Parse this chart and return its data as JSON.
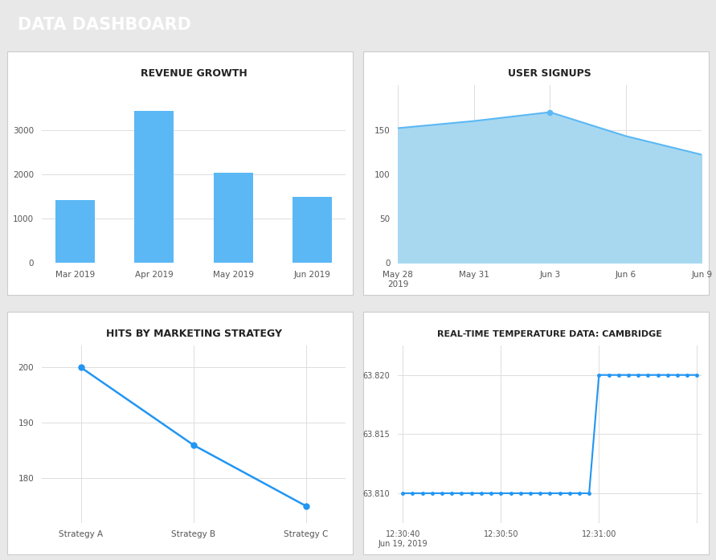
{
  "header_color": "#2196F3",
  "header_text": "DATA DASHBOARD",
  "header_text_color": "#ffffff",
  "bg_color": "#e8e8e8",
  "panel_bg": "#ffffff",
  "panel_edge": "#cccccc",
  "bar_chart": {
    "title": "REVENUE GROWTH",
    "categories": [
      "Mar 2019",
      "Apr 2019",
      "May 2019",
      "Jun 2019"
    ],
    "values": [
      1420,
      3430,
      2040,
      1490
    ],
    "bar_color": "#5BB8F5",
    "ylim": [
      0,
      4000
    ],
    "yticks": [
      0,
      1000,
      2000,
      3000
    ],
    "grid_color": "#dddddd"
  },
  "area_chart": {
    "title": "USER SIGNUPS",
    "x_labels": [
      "May 28\n2019",
      "May 31",
      "Jun 3",
      "Jun 6",
      "Jun 9"
    ],
    "x_values": [
      0,
      3,
      6,
      9,
      12
    ],
    "y_values": [
      152,
      160,
      170,
      143,
      122
    ],
    "line_color": "#5BB8F5",
    "fill_color": "#A8D8F0",
    "ylim": [
      0,
      200
    ],
    "yticks": [
      0,
      50,
      100,
      150
    ],
    "grid_color": "#dddddd"
  },
  "line_chart1": {
    "title": "HITS BY MARKETING STRATEGY",
    "x_labels": [
      "Strategy A",
      "Strategy B",
      "Strategy C"
    ],
    "x_values": [
      0,
      1,
      2
    ],
    "y_values": [
      200,
      186,
      175
    ],
    "line_color": "#2196F3",
    "ylim": [
      172,
      204
    ],
    "yticks": [
      180,
      190,
      200
    ],
    "grid_color": "#dddddd"
  },
  "line_chart2": {
    "title": "REAL-TIME TEMPERATURE DATA: CAMBRIDGE",
    "x_values": [
      0,
      1,
      2,
      3,
      4,
      5,
      6,
      7,
      8,
      9,
      10,
      11,
      12,
      13,
      14,
      15,
      16,
      17,
      18,
      19,
      20,
      21,
      22,
      23,
      24,
      25,
      26,
      27,
      28,
      29,
      30
    ],
    "y_values": [
      63.81,
      63.81,
      63.81,
      63.81,
      63.81,
      63.81,
      63.81,
      63.81,
      63.81,
      63.81,
      63.81,
      63.81,
      63.81,
      63.81,
      63.81,
      63.81,
      63.81,
      63.81,
      63.81,
      63.81,
      63.82,
      63.82,
      63.82,
      63.82,
      63.82,
      63.82,
      63.82,
      63.82,
      63.82,
      63.82,
      63.82
    ],
    "x_tick_positions": [
      0,
      10,
      20,
      30
    ],
    "x_tick_labels": [
      "12:30:40\nJun 19, 2019",
      "12:30:50",
      "12:31:00",
      ""
    ],
    "y_tick_values": [
      63.81,
      63.815,
      63.82
    ],
    "line_color": "#2196F3",
    "ylim": [
      63.8075,
      63.8225
    ],
    "grid_color": "#dddddd"
  }
}
